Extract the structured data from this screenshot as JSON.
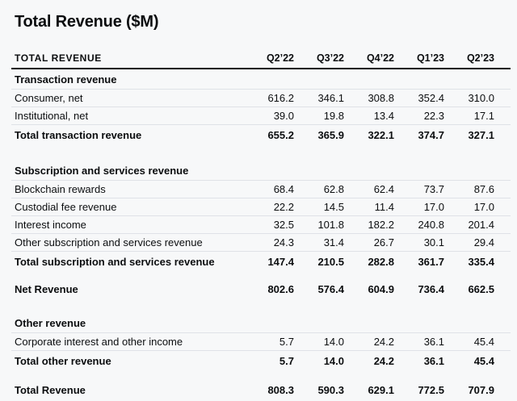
{
  "page": {
    "title": "Total Revenue ($M)"
  },
  "colors": {
    "background": "#f7f8f9",
    "text": "#0b0d0f",
    "divider": "#dfe2e7",
    "header_rule": "#0b0d0f"
  },
  "table": {
    "header_label": "TOTAL REVENUE",
    "columns": [
      "Q2’22",
      "Q3’22",
      "Q4’22",
      "Q1’23",
      "Q2’23"
    ],
    "sections": [
      {
        "heading": "Transaction revenue",
        "rows": [
          {
            "label": "Consumer, net",
            "values": [
              "616.2",
              "346.1",
              "308.8",
              "352.4",
              "310.0"
            ]
          },
          {
            "label": "Institutional, net",
            "values": [
              "39.0",
              "19.8",
              "13.4",
              "22.3",
              "17.1"
            ]
          }
        ],
        "total": {
          "label": "Total transaction revenue",
          "values": [
            "655.2",
            "365.9",
            "322.1",
            "374.7",
            "327.1"
          ]
        }
      },
      {
        "heading": "Subscription and services revenue",
        "rows": [
          {
            "label": "Blockchain rewards",
            "values": [
              "68.4",
              "62.8",
              "62.4",
              "73.7",
              "87.6"
            ]
          },
          {
            "label": "Custodial fee revenue",
            "values": [
              "22.2",
              "14.5",
              "11.4",
              "17.0",
              "17.0"
            ]
          },
          {
            "label": "Interest income",
            "values": [
              "32.5",
              "101.8",
              "182.2",
              "240.8",
              "201.4"
            ]
          },
          {
            "label": "Other subscription and services revenue",
            "values": [
              "24.3",
              "31.4",
              "26.7",
              "30.1",
              "29.4"
            ]
          }
        ],
        "total": {
          "label": "Total subscription and services revenue",
          "values": [
            "147.4",
            "210.5",
            "282.8",
            "361.7",
            "335.4"
          ]
        }
      }
    ],
    "net_revenue": {
      "label": "Net Revenue",
      "values": [
        "802.6",
        "576.4",
        "604.9",
        "736.4",
        "662.5"
      ]
    },
    "other_section": {
      "heading": "Other revenue",
      "rows": [
        {
          "label": "Corporate interest and other income",
          "values": [
            "5.7",
            "14.0",
            "24.2",
            "36.1",
            "45.4"
          ]
        }
      ],
      "total": {
        "label": "Total other revenue",
        "values": [
          "5.7",
          "14.0",
          "24.2",
          "36.1",
          "45.4"
        ]
      }
    },
    "grand_total": {
      "label": "Total Revenue",
      "values": [
        "808.3",
        "590.3",
        "629.1",
        "772.5",
        "707.9"
      ]
    }
  },
  "chart_data": {
    "type": "table",
    "title": "Total Revenue ($M)",
    "unit": "$M",
    "categories": [
      "Q2'22",
      "Q3'22",
      "Q4'22",
      "Q1'23",
      "Q2'23"
    ],
    "series": [
      {
        "name": "Consumer, net",
        "group": "Transaction revenue",
        "values": [
          616.2,
          346.1,
          308.8,
          352.4,
          310.0
        ]
      },
      {
        "name": "Institutional, net",
        "group": "Transaction revenue",
        "values": [
          39.0,
          19.8,
          13.4,
          22.3,
          17.1
        ]
      },
      {
        "name": "Total transaction revenue",
        "group": "Transaction revenue",
        "values": [
          655.2,
          365.9,
          322.1,
          374.7,
          327.1
        ]
      },
      {
        "name": "Blockchain rewards",
        "group": "Subscription and services revenue",
        "values": [
          68.4,
          62.8,
          62.4,
          73.7,
          87.6
        ]
      },
      {
        "name": "Custodial fee revenue",
        "group": "Subscription and services revenue",
        "values": [
          22.2,
          14.5,
          11.4,
          17.0,
          17.0
        ]
      },
      {
        "name": "Interest income",
        "group": "Subscription and services revenue",
        "values": [
          32.5,
          101.8,
          182.2,
          240.8,
          201.4
        ]
      },
      {
        "name": "Other subscription and services revenue",
        "group": "Subscription and services revenue",
        "values": [
          24.3,
          31.4,
          26.7,
          30.1,
          29.4
        ]
      },
      {
        "name": "Total subscription and services revenue",
        "group": "Subscription and services revenue",
        "values": [
          147.4,
          210.5,
          282.8,
          361.7,
          335.4
        ]
      },
      {
        "name": "Net Revenue",
        "group": "",
        "values": [
          802.6,
          576.4,
          604.9,
          736.4,
          662.5
        ]
      },
      {
        "name": "Corporate interest and other income",
        "group": "Other revenue",
        "values": [
          5.7,
          14.0,
          24.2,
          36.1,
          45.4
        ]
      },
      {
        "name": "Total other revenue",
        "group": "Other revenue",
        "values": [
          5.7,
          14.0,
          24.2,
          36.1,
          45.4
        ]
      },
      {
        "name": "Total Revenue",
        "group": "",
        "values": [
          808.3,
          590.3,
          629.1,
          772.5,
          707.9
        ]
      }
    ]
  }
}
